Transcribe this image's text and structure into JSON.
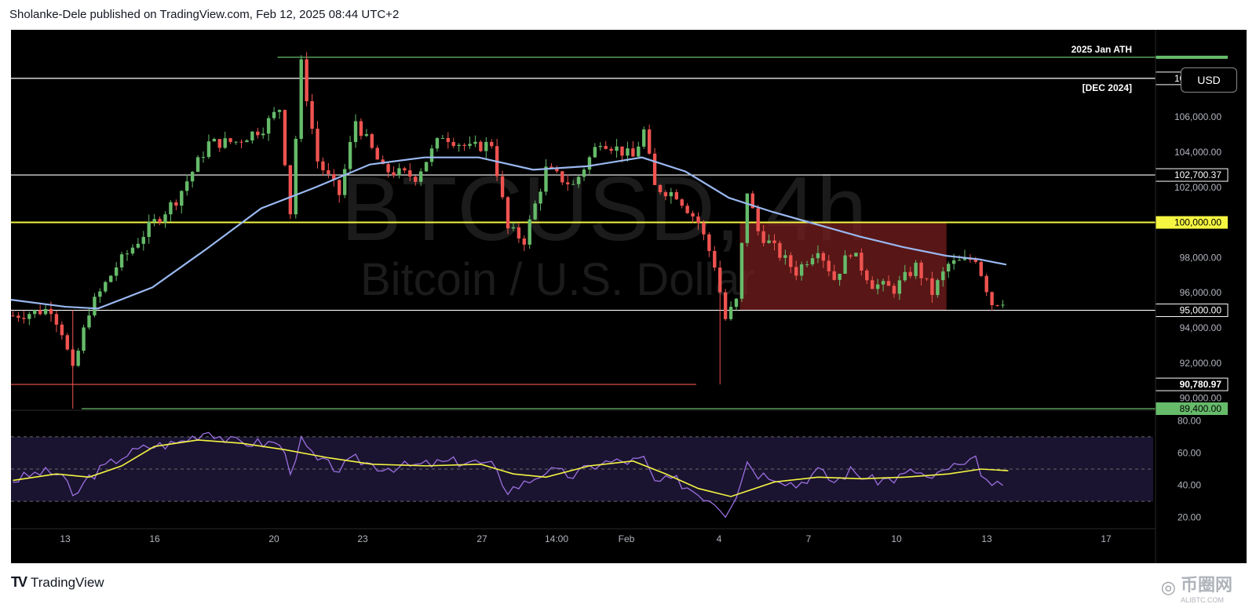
{
  "header": {
    "published_text": "Sholanke-Dele published on TradingView.com, Feb 12, 2025 08:44 UTC+2"
  },
  "watermark": {
    "symbol": "BTCUSD, 4h",
    "description": "Bitcoin / U.S. Dollar"
  },
  "currency_button": "USD",
  "footer": {
    "brand": "TradingView",
    "site_mark_cn": "币圈网",
    "site_mark_en": "ALIBTC.COM"
  },
  "colors": {
    "background": "#000000",
    "up_candle": "#66bb6a",
    "down_candle": "#ef5350",
    "ma_line": "#9ab8f0",
    "key_level": "#f5f542",
    "rsi_line": "#9c6fe0",
    "rsi_ma": "#f5f542",
    "red_zone": "#7a1f1f"
  },
  "chart_data": {
    "type": "candlestick",
    "symbol": "BTCUSD",
    "timeframe": "4h",
    "ylim": [
      89000,
      110000
    ],
    "x_ticks": [
      "13",
      "16",
      "20",
      "23",
      "27",
      "14:00",
      "Feb",
      "4",
      "7",
      "10",
      "13",
      "17"
    ],
    "y_ticks": [
      "106,000.00",
      "104,000.00",
      "102,000.00",
      "98,000.00",
      "96,000.00",
      "94,000.00",
      "92,000.00",
      "90,000.00"
    ],
    "y_tick_values": [
      106000,
      104000,
      102000,
      98000,
      96000,
      94000,
      92000,
      90000
    ],
    "horizontal_levels": [
      {
        "price": 109400,
        "label": "2025 Jan ATH",
        "color": "#66bb6a"
      },
      {
        "price": 108200,
        "label": "[DEC 2024]",
        "tag": "108,200.00",
        "color": "#ffffff"
      },
      {
        "price": 102700.37,
        "tag": "102,700.37",
        "color": "#ffffff"
      },
      {
        "price": 100000,
        "tag": "100,000.00",
        "color": "#f5f542"
      },
      {
        "price": 95000,
        "tag": "95,000.00",
        "color": "#ffffff"
      },
      {
        "price": 90780.97,
        "tag": "90,780.97",
        "color": "#ef5350"
      },
      {
        "price": 89400,
        "tag": "89,400.00",
        "color": "#66bb6a"
      }
    ],
    "zone": {
      "from": 95000,
      "to": 100000,
      "label": ""
    },
    "ohlc_keypoints": [
      {
        "t": 0,
        "p": 94700
      },
      {
        "t": 4,
        "p": 94900
      },
      {
        "t": 7,
        "p": 95100
      },
      {
        "t": 9,
        "p": 93800
      },
      {
        "t": 11,
        "p": 91500
      },
      {
        "t": 14,
        "p": 95000
      },
      {
        "t": 19,
        "p": 97500
      },
      {
        "t": 25,
        "p": 99700
      },
      {
        "t": 30,
        "p": 101300
      },
      {
        "t": 36,
        "p": 104500
      },
      {
        "t": 41,
        "p": 104600
      },
      {
        "t": 46,
        "p": 105400
      },
      {
        "t": 49,
        "p": 106500
      },
      {
        "t": 51,
        "p": 100600
      },
      {
        "t": 53,
        "p": 109000
      },
      {
        "t": 56,
        "p": 103500
      },
      {
        "t": 60,
        "p": 101600
      },
      {
        "t": 63,
        "p": 105800
      },
      {
        "t": 68,
        "p": 103000
      },
      {
        "t": 74,
        "p": 102600
      },
      {
        "t": 79,
        "p": 105000
      },
      {
        "t": 84,
        "p": 104200
      },
      {
        "t": 88,
        "p": 104500
      },
      {
        "t": 91,
        "p": 99600
      },
      {
        "t": 94,
        "p": 99000
      },
      {
        "t": 98,
        "p": 103000
      },
      {
        "t": 103,
        "p": 102100
      },
      {
        "t": 108,
        "p": 104700
      },
      {
        "t": 114,
        "p": 103700
      },
      {
        "t": 116,
        "p": 105200
      },
      {
        "t": 118,
        "p": 102000
      },
      {
        "t": 122,
        "p": 101600
      },
      {
        "t": 126,
        "p": 100000
      },
      {
        "t": 129,
        "p": 97600
      },
      {
        "t": 131,
        "p": 94500
      },
      {
        "t": 133,
        "p": 95500
      },
      {
        "t": 135,
        "p": 101800
      },
      {
        "t": 137,
        "p": 99500
      },
      {
        "t": 140,
        "p": 98500
      },
      {
        "t": 144,
        "p": 97200
      },
      {
        "t": 148,
        "p": 98600
      },
      {
        "t": 151,
        "p": 96800
      },
      {
        "t": 154,
        "p": 98400
      },
      {
        "t": 158,
        "p": 96500
      },
      {
        "t": 162,
        "p": 96200
      },
      {
        "t": 166,
        "p": 97500
      },
      {
        "t": 169,
        "p": 96000
      },
      {
        "t": 172,
        "p": 97600
      },
      {
        "t": 175,
        "p": 97800
      },
      {
        "t": 177,
        "p": 98000
      },
      {
        "t": 180,
        "p": 95400
      },
      {
        "t": 182,
        "p": 95600
      }
    ],
    "ma_series": [
      {
        "t": 0,
        "p": 95600
      },
      {
        "t": 10,
        "p": 95200
      },
      {
        "t": 16,
        "p": 95100
      },
      {
        "t": 26,
        "p": 96300
      },
      {
        "t": 36,
        "p": 98500
      },
      {
        "t": 46,
        "p": 100800
      },
      {
        "t": 56,
        "p": 102000
      },
      {
        "t": 66,
        "p": 103300
      },
      {
        "t": 76,
        "p": 103700
      },
      {
        "t": 86,
        "p": 103700
      },
      {
        "t": 96,
        "p": 103000
      },
      {
        "t": 106,
        "p": 103200
      },
      {
        "t": 116,
        "p": 103700
      },
      {
        "t": 124,
        "p": 102900
      },
      {
        "t": 132,
        "p": 101400
      },
      {
        "t": 140,
        "p": 100600
      },
      {
        "t": 148,
        "p": 99900
      },
      {
        "t": 156,
        "p": 99200
      },
      {
        "t": 164,
        "p": 98600
      },
      {
        "t": 172,
        "p": 98100
      },
      {
        "t": 178,
        "p": 97900
      },
      {
        "t": 183,
        "p": 97600
      }
    ],
    "rsi": {
      "ylim": [
        15,
        85
      ],
      "y_ticks": [
        "80.00",
        "60.00",
        "40.00",
        "20.00"
      ],
      "y_tick_values": [
        80,
        60,
        40,
        20
      ],
      "bands": [
        70,
        50,
        30
      ],
      "rsi_keypoints": [
        {
          "t": 0,
          "p": 43
        },
        {
          "t": 5,
          "p": 48
        },
        {
          "t": 9,
          "p": 47
        },
        {
          "t": 11,
          "p": 32
        },
        {
          "t": 14,
          "p": 45
        },
        {
          "t": 20,
          "p": 58
        },
        {
          "t": 25,
          "p": 64
        },
        {
          "t": 30,
          "p": 66
        },
        {
          "t": 36,
          "p": 74
        },
        {
          "t": 40,
          "p": 67
        },
        {
          "t": 46,
          "p": 66
        },
        {
          "t": 49,
          "p": 66
        },
        {
          "t": 51,
          "p": 50
        },
        {
          "t": 53,
          "p": 67
        },
        {
          "t": 56,
          "p": 55
        },
        {
          "t": 60,
          "p": 50
        },
        {
          "t": 63,
          "p": 56
        },
        {
          "t": 68,
          "p": 51
        },
        {
          "t": 74,
          "p": 52
        },
        {
          "t": 79,
          "p": 54
        },
        {
          "t": 84,
          "p": 55
        },
        {
          "t": 88,
          "p": 52
        },
        {
          "t": 91,
          "p": 37
        },
        {
          "t": 94,
          "p": 41
        },
        {
          "t": 98,
          "p": 49
        },
        {
          "t": 103,
          "p": 46
        },
        {
          "t": 108,
          "p": 54
        },
        {
          "t": 114,
          "p": 55
        },
        {
          "t": 116,
          "p": 56
        },
        {
          "t": 118,
          "p": 42
        },
        {
          "t": 122,
          "p": 43
        },
        {
          "t": 126,
          "p": 35
        },
        {
          "t": 129,
          "p": 30
        },
        {
          "t": 131,
          "p": 23
        },
        {
          "t": 133,
          "p": 35
        },
        {
          "t": 135,
          "p": 55
        },
        {
          "t": 137,
          "p": 47
        },
        {
          "t": 140,
          "p": 46
        },
        {
          "t": 144,
          "p": 40
        },
        {
          "t": 148,
          "p": 49
        },
        {
          "t": 151,
          "p": 42
        },
        {
          "t": 154,
          "p": 49
        },
        {
          "t": 158,
          "p": 43
        },
        {
          "t": 162,
          "p": 44
        },
        {
          "t": 166,
          "p": 49
        },
        {
          "t": 169,
          "p": 43
        },
        {
          "t": 172,
          "p": 51
        },
        {
          "t": 175,
          "p": 52
        },
        {
          "t": 177,
          "p": 55
        },
        {
          "t": 180,
          "p": 37
        },
        {
          "t": 182,
          "p": 42
        }
      ],
      "rsi_ma_keypoints": [
        {
          "t": 0,
          "p": 43
        },
        {
          "t": 8,
          "p": 47
        },
        {
          "t": 14,
          "p": 45
        },
        {
          "t": 20,
          "p": 52
        },
        {
          "t": 26,
          "p": 64
        },
        {
          "t": 34,
          "p": 68
        },
        {
          "t": 42,
          "p": 66
        },
        {
          "t": 50,
          "p": 62
        },
        {
          "t": 58,
          "p": 57
        },
        {
          "t": 66,
          "p": 53
        },
        {
          "t": 76,
          "p": 52
        },
        {
          "t": 86,
          "p": 53
        },
        {
          "t": 92,
          "p": 47
        },
        {
          "t": 98,
          "p": 45
        },
        {
          "t": 106,
          "p": 52
        },
        {
          "t": 114,
          "p": 55
        },
        {
          "t": 120,
          "p": 47
        },
        {
          "t": 126,
          "p": 38
        },
        {
          "t": 132,
          "p": 33
        },
        {
          "t": 140,
          "p": 42
        },
        {
          "t": 148,
          "p": 45
        },
        {
          "t": 156,
          "p": 44
        },
        {
          "t": 164,
          "p": 45
        },
        {
          "t": 172,
          "p": 47
        },
        {
          "t": 178,
          "p": 50
        },
        {
          "t": 183,
          "p": 49
        }
      ]
    }
  }
}
